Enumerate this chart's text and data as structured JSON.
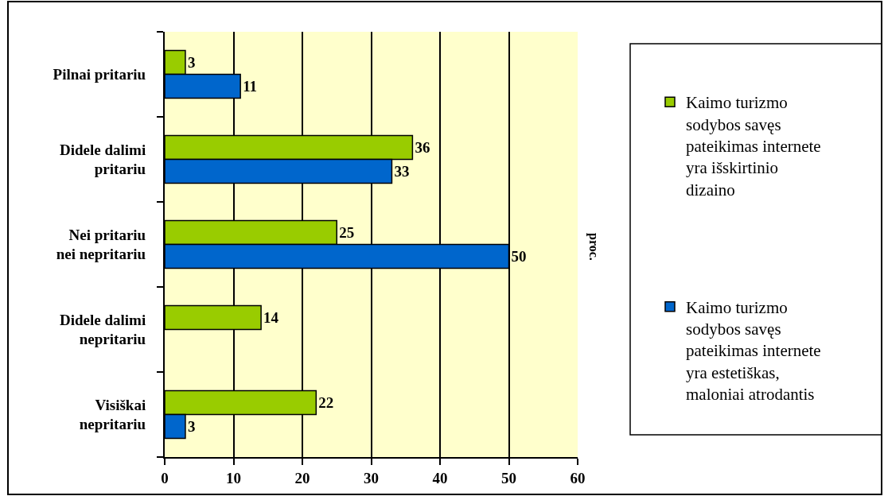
{
  "chart_data": {
    "type": "bar",
    "orientation": "horizontal",
    "categories": [
      "Pilnai pritariu",
      "Didele dalimi pritariu",
      "Nei pritariu nei nepritariu",
      "Didele dalimi nepritariu",
      "Visiškai nepritariu"
    ],
    "series": [
      {
        "name": "Kaimo turizmo sodybos savęs pateikimas internete yra išskirtinio dizaino",
        "color": "#99cc00",
        "values": [
          3,
          36,
          25,
          14,
          22
        ]
      },
      {
        "name": "Kaimo turizmo sodybos savęs pateikimas internete yra estetiškas, maloniai atrodantis",
        "color": "#0066cc",
        "values": [
          11,
          33,
          50,
          null,
          3
        ]
      }
    ],
    "annotations": [
      "proc."
    ],
    "xlim": [
      0,
      60
    ],
    "xticks": [
      0,
      10,
      20,
      30,
      40,
      50,
      60
    ],
    "grid": "x",
    "legend": "right",
    "data_labels": true
  }
}
